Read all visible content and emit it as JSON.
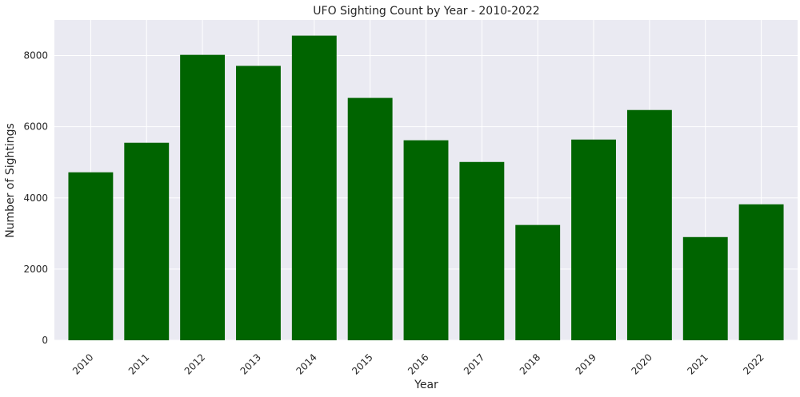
{
  "chart_data": {
    "type": "bar",
    "title": "UFO Sighting Count by Year - 2010-2022",
    "xlabel": "Year",
    "ylabel": "Number of Sightings",
    "categories": [
      "2010",
      "2011",
      "2012",
      "2013",
      "2014",
      "2015",
      "2016",
      "2017",
      "2018",
      "2019",
      "2020",
      "2021",
      "2022"
    ],
    "values": [
      4720,
      5550,
      8020,
      7710,
      8560,
      6810,
      5620,
      5010,
      3240,
      5640,
      6470,
      2900,
      3820
    ],
    "ylim": [
      0,
      9000
    ],
    "yticks": [
      0,
      2000,
      4000,
      6000,
      8000
    ],
    "grid": true,
    "legend": "none",
    "colors": {
      "bar": "#006400",
      "background": "#eaeaf2",
      "grid": "#ffffff"
    }
  }
}
